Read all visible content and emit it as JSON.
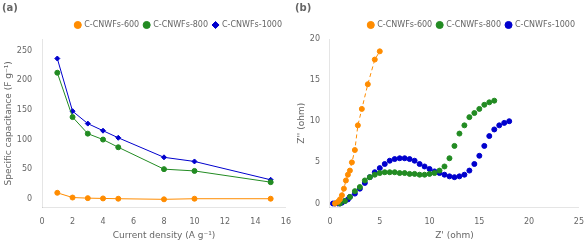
{
  "chart_data": [
    {
      "type": "line",
      "title": "(a)",
      "xlabel": "Current density (A g⁻¹)",
      "ylabel": "Specific capacitance (F g⁻¹)",
      "xlim": [
        0,
        16
      ],
      "xticks": [
        0,
        2,
        4,
        6,
        8,
        10,
        12,
        14,
        16
      ],
      "ylim": [
        -15,
        270
      ],
      "yticks": [
        0,
        50,
        100,
        150,
        200,
        250
      ],
      "grid": false,
      "legend": "upper right",
      "series": [
        {
          "name": "C-CNWFs-600",
          "color": "#FF8C00",
          "marker": "circle",
          "line_style": "solid",
          "x": [
            1,
            2,
            3,
            4,
            5,
            8,
            10,
            15
          ],
          "values": [
            10,
            2,
            1,
            0.5,
            0,
            -1,
            0,
            0
          ]
        },
        {
          "name": "C-CNWFs-800",
          "color": "#228B22",
          "marker": "circle",
          "line_style": "solid",
          "x": [
            1,
            2,
            3,
            4,
            5,
            8,
            10,
            15
          ],
          "values": [
            213,
            138,
            110,
            100,
            87,
            50,
            47,
            28
          ]
        },
        {
          "name": "C-CNWFs-1000",
          "color": "#0000CD",
          "marker": "diamond",
          "line_style": "solid",
          "x": [
            1,
            2,
            3,
            4,
            5,
            8,
            10,
            15
          ],
          "values": [
            237,
            148,
            127,
            115,
            103,
            70,
            63,
            32
          ]
        }
      ]
    },
    {
      "type": "scatter",
      "title": "(b)",
      "xlabel": "Z' (ohm)",
      "ylabel": "Z'' (ohm)",
      "xlim": [
        0,
        25
      ],
      "xticks": [
        0,
        5,
        10,
        15,
        20,
        25
      ],
      "ylim": [
        -0.5,
        20
      ],
      "yticks": [
        0,
        5,
        10,
        15,
        20
      ],
      "grid": false,
      "legend": "upper right",
      "series": [
        {
          "name": "C-CNWFs-600",
          "color": "#FF8C00",
          "marker": "circle",
          "line_style": "dashed",
          "x": [
            0.5,
            0.8,
            1.0,
            1.2,
            1.4,
            1.6,
            1.8,
            2.0,
            2.2,
            2.5,
            2.8,
            3.2,
            3.8,
            4.5,
            5.0
          ],
          "values": [
            0.0,
            0.2,
            0.5,
            1.0,
            1.8,
            2.8,
            3.5,
            4.0,
            5.0,
            6.5,
            9.5,
            11.5,
            14.5,
            17.5,
            18.5
          ]
        },
        {
          "name": "C-CNWFs-800",
          "color": "#228B22",
          "marker": "circle",
          "line_style": "none",
          "x": [
            1.0,
            1.5,
            2.0,
            2.5,
            3.0,
            3.5,
            4.0,
            4.5,
            5.0,
            5.5,
            6.0,
            6.5,
            7.0,
            7.5,
            8.0,
            8.5,
            9.0,
            9.5,
            10.0,
            10.5,
            11.0,
            11.5,
            12.0,
            12.5,
            13.0,
            13.5,
            14.0,
            14.5,
            15.0,
            15.5,
            16.0,
            16.5
          ],
          "values": [
            0.0,
            0.3,
            0.8,
            1.5,
            2.0,
            2.8,
            3.2,
            3.5,
            3.7,
            3.8,
            3.8,
            3.8,
            3.7,
            3.7,
            3.6,
            3.6,
            3.5,
            3.5,
            3.6,
            3.7,
            4.0,
            4.5,
            5.5,
            7.0,
            8.5,
            9.5,
            10.5,
            11.0,
            11.5,
            12.0,
            12.3,
            12.5
          ]
        },
        {
          "name": "C-CNWFs-1000",
          "color": "#0000CD",
          "marker": "circle",
          "line_style": "none",
          "x": [
            0.3,
            0.5,
            0.8,
            1.0,
            1.2,
            1.5,
            1.8,
            2.0,
            2.5,
            3.0,
            3.5,
            4.0,
            4.5,
            5.0,
            5.5,
            6.0,
            6.5,
            7.0,
            7.5,
            8.0,
            8.5,
            9.0,
            9.5,
            10.0,
            10.5,
            11.0,
            11.5,
            12.0,
            12.5,
            13.0,
            13.5,
            14.0,
            14.5,
            15.0,
            15.5,
            16.0,
            16.5,
            17.0,
            17.5,
            18.0
          ],
          "values": [
            0.0,
            0.0,
            0.0,
            0.0,
            0.1,
            0.3,
            0.5,
            0.8,
            1.2,
            1.8,
            2.5,
            3.2,
            3.8,
            4.3,
            4.8,
            5.2,
            5.4,
            5.5,
            5.5,
            5.4,
            5.2,
            4.8,
            4.5,
            4.2,
            3.9,
            3.7,
            3.5,
            3.3,
            3.2,
            3.3,
            3.5,
            4.0,
            4.8,
            5.8,
            7.0,
            8.2,
            9.0,
            9.5,
            9.8,
            10.0
          ]
        }
      ]
    }
  ]
}
